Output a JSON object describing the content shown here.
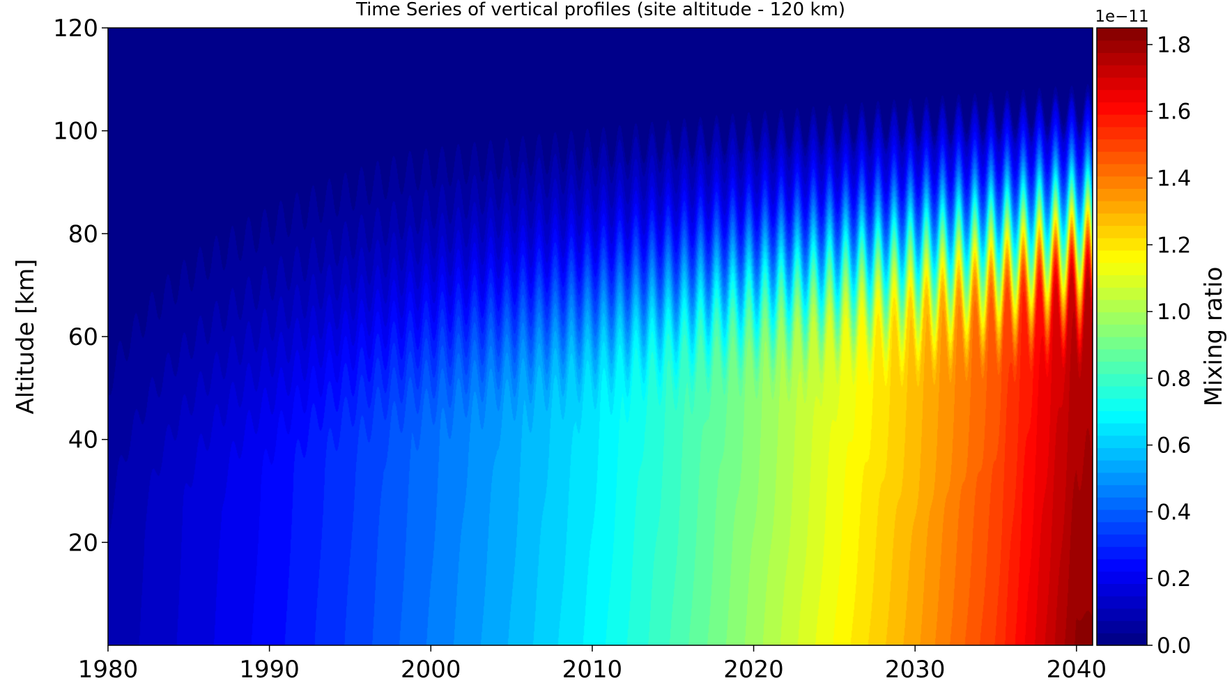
{
  "chart_data": {
    "type": "heatmap",
    "title": "Time Series of vertical profiles (site altitude - 120 km)",
    "xlabel": "",
    "ylabel": "Altitude [km]",
    "xlim": [
      1980,
      2041
    ],
    "ylim": [
      0,
      120
    ],
    "x_ticks": [
      "1980",
      "1990",
      "2000",
      "2010",
      "2020",
      "2030",
      "2040"
    ],
    "x_tick_values": [
      1980,
      1990,
      2000,
      2010,
      2020,
      2030,
      2040
    ],
    "y_ticks": [
      "20",
      "40",
      "60",
      "80",
      "100",
      "120"
    ],
    "y_tick_values": [
      20,
      40,
      60,
      80,
      100,
      120
    ],
    "grid": false,
    "colorbar": {
      "label": "Mixing ratio",
      "scale_label": "1e−11",
      "range": [
        0.0,
        1.85
      ],
      "ticks": [
        "0.0",
        "0.2",
        "0.4",
        "0.6",
        "0.8",
        "1.0",
        "1.2",
        "1.4",
        "1.6",
        "1.8"
      ],
      "tick_values": [
        0.0,
        0.2,
        0.4,
        0.6,
        0.8,
        1.0,
        1.2,
        1.4,
        1.6,
        1.8
      ],
      "colormap": "jet",
      "levels": 50
    },
    "series": [
      {
        "year": [
          1980,
          1985,
          1990,
          1995,
          2000,
          2005,
          2010,
          2015,
          2020,
          2025,
          2030,
          2035,
          2040
        ],
        "surface_mixing_ratio": [
          0.08,
          0.16,
          0.24,
          0.34,
          0.45,
          0.56,
          0.68,
          0.82,
          0.98,
          1.15,
          1.32,
          1.52,
          1.82
        ]
      }
    ],
    "seasonal_cycle": "annual oscillation, strongest at 60-95 km"
  }
}
